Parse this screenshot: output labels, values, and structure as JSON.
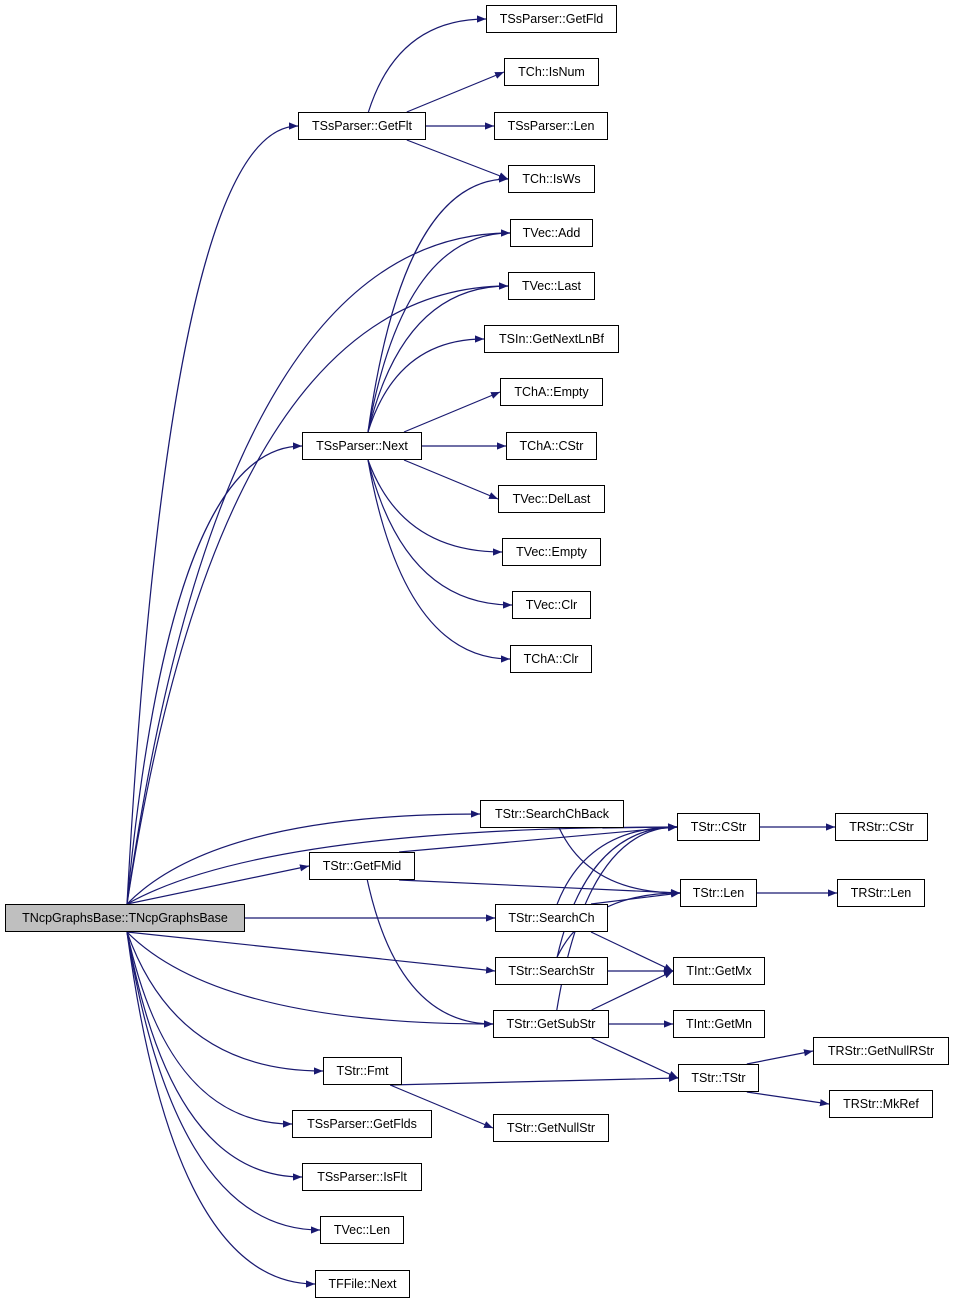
{
  "colors": {
    "edge": "#191970",
    "root_fill": "#bfbfbf",
    "node_fill": "#ffffff"
  },
  "nodes": [
    {
      "id": "root",
      "label": "TNcpGraphsBase::TNcpGraphsBase"
    },
    {
      "id": "getfld",
      "label": "TSsParser::GetFld"
    },
    {
      "id": "isnum",
      "label": "TCh::IsNum"
    },
    {
      "id": "getflt",
      "label": "TSsParser::GetFlt"
    },
    {
      "id": "sslen",
      "label": "TSsParser::Len"
    },
    {
      "id": "isws",
      "label": "TCh::IsWs"
    },
    {
      "id": "vadd",
      "label": "TVec::Add"
    },
    {
      "id": "vlast",
      "label": "TVec::Last"
    },
    {
      "id": "getnextln",
      "label": "TSIn::GetNextLnBf"
    },
    {
      "id": "chaempty",
      "label": "TChA::Empty"
    },
    {
      "id": "ssnext",
      "label": "TSsParser::Next"
    },
    {
      "id": "chacstr",
      "label": "TChA::CStr"
    },
    {
      "id": "vdellast",
      "label": "TVec::DelLast"
    },
    {
      "id": "vempty",
      "label": "TVec::Empty"
    },
    {
      "id": "vclr",
      "label": "TVec::Clr"
    },
    {
      "id": "chaclr",
      "label": "TChA::Clr"
    },
    {
      "id": "searchchback",
      "label": "TStr::SearchChBack"
    },
    {
      "id": "strcstr",
      "label": "TStr::CStr"
    },
    {
      "id": "rstrcstr",
      "label": "TRStr::CStr"
    },
    {
      "id": "getfmid",
      "label": "TStr::GetFMid"
    },
    {
      "id": "strlen",
      "label": "TStr::Len"
    },
    {
      "id": "rstrlen",
      "label": "TRStr::Len"
    },
    {
      "id": "searchch",
      "label": "TStr::SearchCh"
    },
    {
      "id": "searchstr",
      "label": "TStr::SearchStr"
    },
    {
      "id": "getmx",
      "label": "TInt::GetMx"
    },
    {
      "id": "getsubstr",
      "label": "TStr::GetSubStr"
    },
    {
      "id": "getmn",
      "label": "TInt::GetMn"
    },
    {
      "id": "getnullrstr",
      "label": "TRStr::GetNullRStr"
    },
    {
      "id": "fmt",
      "label": "TStr::Fmt"
    },
    {
      "id": "tstr",
      "label": "TStr::TStr"
    },
    {
      "id": "mkref",
      "label": "TRStr::MkRef"
    },
    {
      "id": "getflds",
      "label": "TSsParser::GetFlds"
    },
    {
      "id": "getnullstr",
      "label": "TStr::GetNullStr"
    },
    {
      "id": "isflt",
      "label": "TSsParser::IsFlt"
    },
    {
      "id": "veclen",
      "label": "TVec::Len"
    },
    {
      "id": "ffnext",
      "label": "TFFile::Next"
    }
  ],
  "edges": [
    [
      "root",
      "getflt"
    ],
    [
      "root",
      "vadd"
    ],
    [
      "root",
      "vlast"
    ],
    [
      "root",
      "ssnext"
    ],
    [
      "root",
      "strcstr"
    ],
    [
      "root",
      "searchchback"
    ],
    [
      "root",
      "getfmid"
    ],
    [
      "root",
      "searchch"
    ],
    [
      "root",
      "searchstr"
    ],
    [
      "root",
      "getsubstr"
    ],
    [
      "root",
      "fmt"
    ],
    [
      "root",
      "getflds"
    ],
    [
      "root",
      "isflt"
    ],
    [
      "root",
      "veclen"
    ],
    [
      "root",
      "ffnext"
    ],
    [
      "getflt",
      "getfld"
    ],
    [
      "getflt",
      "isnum"
    ],
    [
      "getflt",
      "sslen"
    ],
    [
      "getflt",
      "isws"
    ],
    [
      "ssnext",
      "isws"
    ],
    [
      "ssnext",
      "vadd"
    ],
    [
      "ssnext",
      "vlast"
    ],
    [
      "ssnext",
      "getnextln"
    ],
    [
      "ssnext",
      "chaempty"
    ],
    [
      "ssnext",
      "chacstr"
    ],
    [
      "ssnext",
      "vdellast"
    ],
    [
      "ssnext",
      "vempty"
    ],
    [
      "ssnext",
      "vclr"
    ],
    [
      "ssnext",
      "chaclr"
    ],
    [
      "searchchback",
      "strcstr"
    ],
    [
      "searchchback",
      "strlen"
    ],
    [
      "getfmid",
      "strcstr"
    ],
    [
      "getfmid",
      "strlen"
    ],
    [
      "getfmid",
      "getsubstr"
    ],
    [
      "searchch",
      "strcstr"
    ],
    [
      "searchch",
      "strlen"
    ],
    [
      "searchch",
      "getmx"
    ],
    [
      "searchstr",
      "strcstr"
    ],
    [
      "searchstr",
      "getmx"
    ],
    [
      "searchstr",
      "strlen"
    ],
    [
      "getsubstr",
      "strcstr"
    ],
    [
      "getsubstr",
      "getmx"
    ],
    [
      "getsubstr",
      "getmn"
    ],
    [
      "getsubstr",
      "tstr"
    ],
    [
      "strcstr",
      "rstrcstr"
    ],
    [
      "strlen",
      "rstrlen"
    ],
    [
      "fmt",
      "tstr"
    ],
    [
      "fmt",
      "getnullstr"
    ],
    [
      "tstr",
      "getnullrstr"
    ],
    [
      "tstr",
      "mkref"
    ]
  ]
}
